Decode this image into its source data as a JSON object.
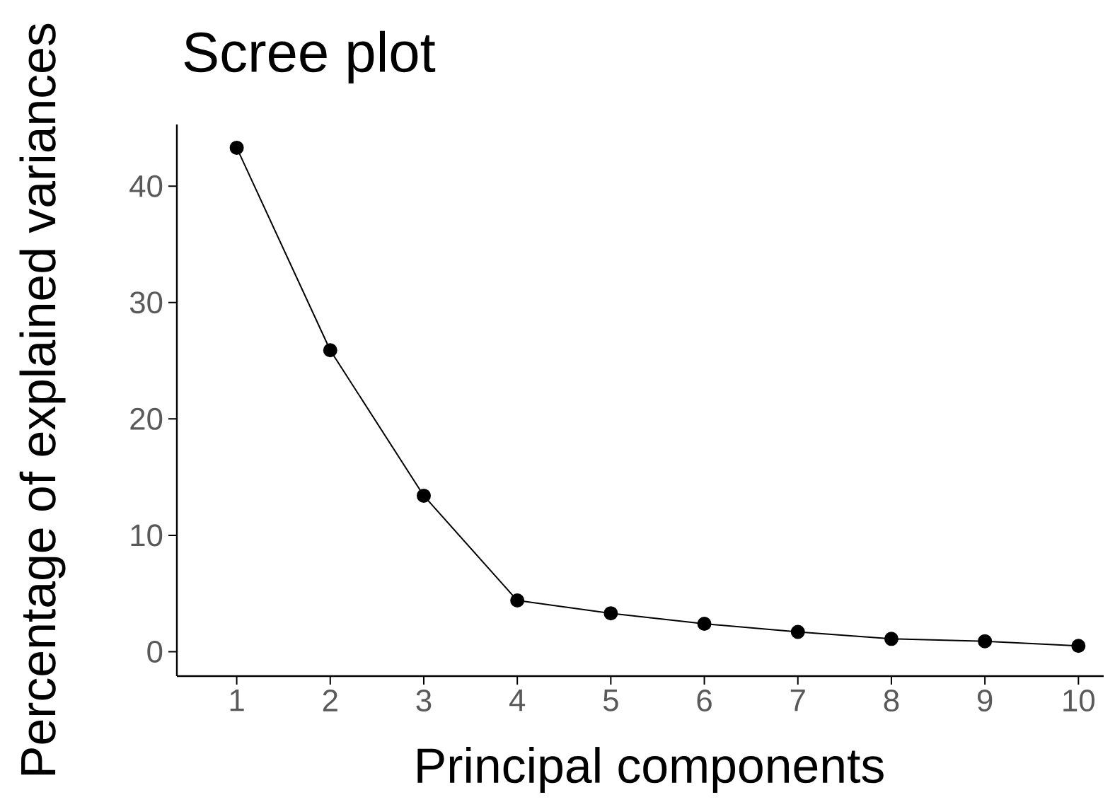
{
  "chart_data": {
    "type": "line",
    "title": "Scree plot",
    "xlabel": "Principal components",
    "ylabel": "Percentage of explained variances",
    "categories": [
      "1",
      "2",
      "3",
      "4",
      "5",
      "6",
      "7",
      "8",
      "9",
      "10"
    ],
    "series": [
      {
        "color": "#000000",
        "values": [
          43.3,
          25.9,
          13.4,
          4.4,
          3.3,
          2.4,
          1.7,
          1.1,
          0.9,
          0.5
        ]
      }
    ],
    "ylim": [
      -2.1,
      45.3
    ],
    "yticks": [
      0,
      10,
      20,
      30,
      40
    ],
    "grid": false,
    "marker": "circle",
    "line_style": "solid"
  }
}
